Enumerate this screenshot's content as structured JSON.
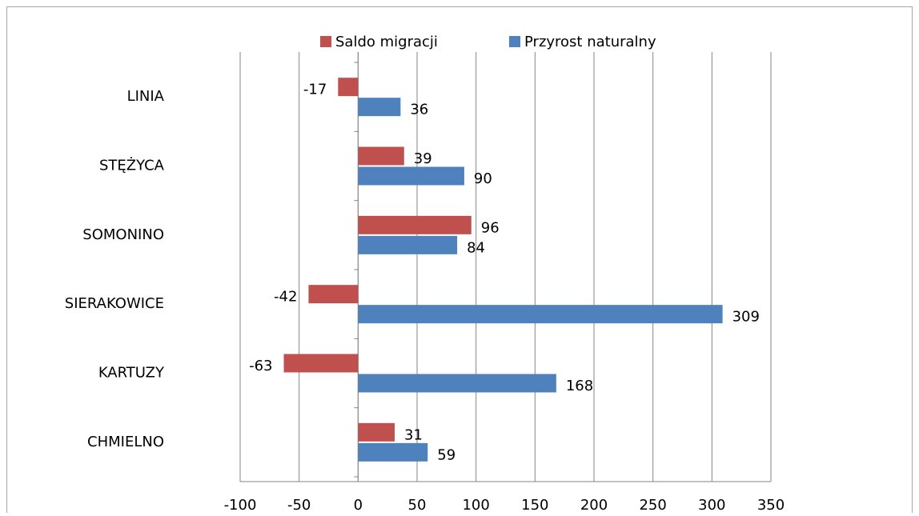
{
  "chart_data": {
    "type": "barh",
    "categories": [
      "LINIA",
      "STĘŻYCA",
      "SOMONINO",
      "SIERAKOWICE",
      "KARTUZY",
      "CHMIELNO"
    ],
    "series": [
      {
        "name": "Saldo migracji",
        "color": "#c0504d",
        "values": [
          -17,
          39,
          96,
          -42,
          -63,
          31
        ]
      },
      {
        "name": "Przyrost naturalny",
        "color": "#4f81bd",
        "values": [
          36,
          90,
          84,
          309,
          168,
          59
        ]
      }
    ],
    "xlim": [
      -100,
      350
    ],
    "xticks": [
      -100,
      -50,
      0,
      50,
      100,
      150,
      200,
      250,
      300,
      350
    ],
    "grid": true,
    "legend": "top"
  }
}
